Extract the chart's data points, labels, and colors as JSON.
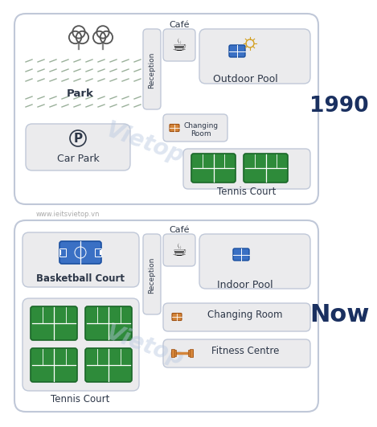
{
  "bg_color": "#ffffff",
  "border_color": "#c0c8d8",
  "box_fill": "#ebebed",
  "green_court": "#2e8b3a",
  "green_court_dark": "#1a6628",
  "blue_bball": "#3a70c4",
  "blue_bball_dark": "#1a4fa0",
  "orange_icon": "#c87820",
  "label_1990": "1990",
  "label_now": "Now",
  "watermark": "Vietop",
  "website": "www.ieitsvietop.vn",
  "text_color": "#2d3748",
  "year_color1": "#1a3060",
  "year_color2": "#1a3060",
  "grass_color": "#9ab09a",
  "white": "#ffffff"
}
